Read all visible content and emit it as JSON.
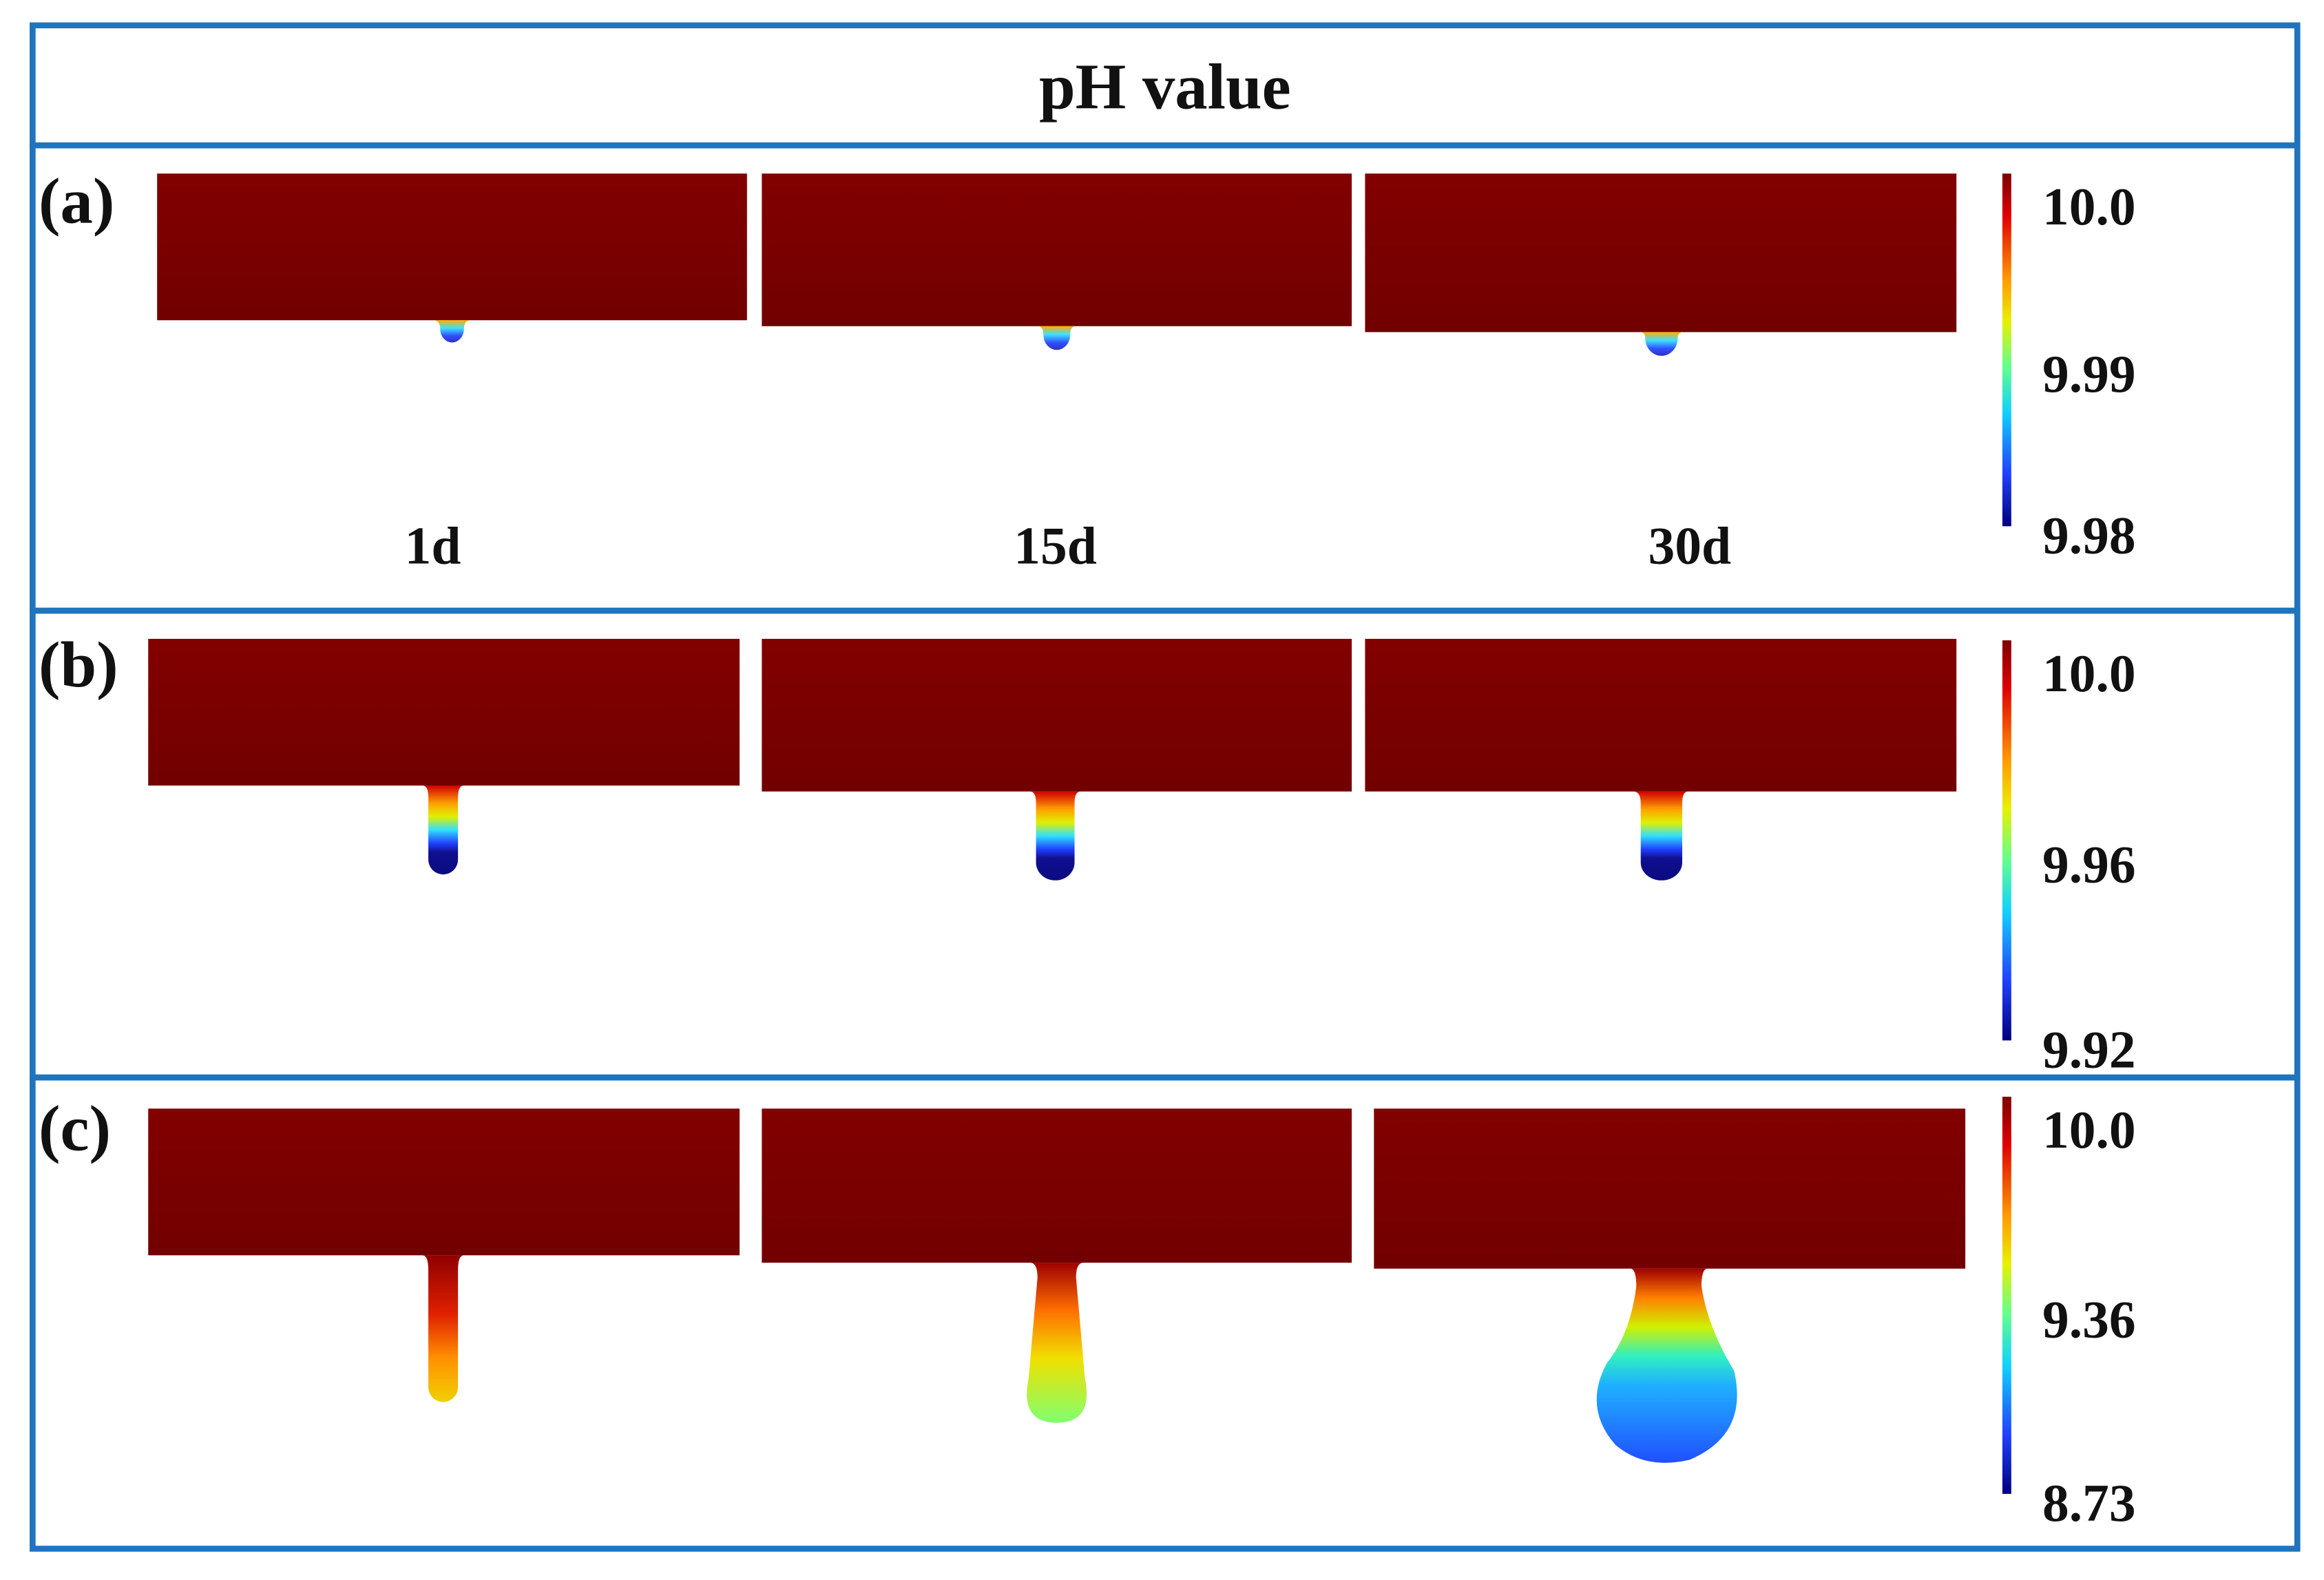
{
  "title": "pH value",
  "panels": [
    {
      "label": "(a)",
      "times": [
        "1d",
        "15d",
        "30d"
      ],
      "colorbar": {
        "ticks": [
          "10.0",
          "9.99",
          "9.98"
        ]
      }
    },
    {
      "label": "(b)",
      "colorbar": {
        "ticks": [
          "10.0",
          "9.96",
          "9.92"
        ]
      }
    },
    {
      "label": "(c)",
      "colorbar": {
        "ticks": [
          "10.0",
          "9.36",
          "8.73"
        ]
      }
    }
  ]
}
